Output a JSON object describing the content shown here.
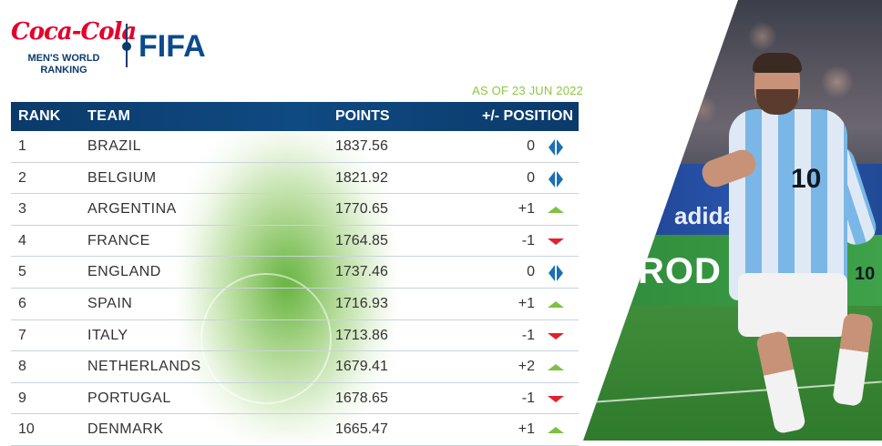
{
  "branding": {
    "sponsor": "Coca-Cola",
    "ranking_title_line1": "MEN'S WORLD",
    "ranking_title_line2": "RANKING",
    "org": "FIFA"
  },
  "as_of": "AS OF 23 JUN 2022",
  "table": {
    "headers": {
      "rank": "RANK",
      "team": "TEAM",
      "points": "POINTS",
      "change": "+/- POSITION"
    },
    "rows": [
      {
        "rank": "1",
        "team": "BRAZIL",
        "points": "1837.56",
        "change": "0",
        "trend": "same"
      },
      {
        "rank": "2",
        "team": "BELGIUM",
        "points": "1821.92",
        "change": "0",
        "trend": "same"
      },
      {
        "rank": "3",
        "team": "ARGENTINA",
        "points": "1770.65",
        "change": "+1",
        "trend": "up"
      },
      {
        "rank": "4",
        "team": "FRANCE",
        "points": "1764.85",
        "change": "-1",
        "trend": "down"
      },
      {
        "rank": "5",
        "team": "ENGLAND",
        "points": "1737.46",
        "change": "0",
        "trend": "same"
      },
      {
        "rank": "6",
        "team": "SPAIN",
        "points": "1716.93",
        "change": "+1",
        "trend": "up"
      },
      {
        "rank": "7",
        "team": "ITALY",
        "points": "1713.86",
        "change": "-1",
        "trend": "down"
      },
      {
        "rank": "8",
        "team": "NETHERLANDS",
        "points": "1679.41",
        "change": "+2",
        "trend": "up"
      },
      {
        "rank": "9",
        "team": "PORTUGAL",
        "points": "1678.65",
        "change": "-1",
        "trend": "down"
      },
      {
        "rank": "10",
        "team": "DENMARK",
        "points": "1665.47",
        "change": "+1",
        "trend": "up"
      }
    ]
  },
  "photo": {
    "board_text_1": "adidas",
    "board_text_2": "ROD",
    "shirt_number": "10"
  },
  "colors": {
    "header": "#0b3a6a",
    "up": "#7dc242",
    "down": "#e0222a",
    "same": "#1a6fb5",
    "accent_green": "#8dc63f"
  }
}
